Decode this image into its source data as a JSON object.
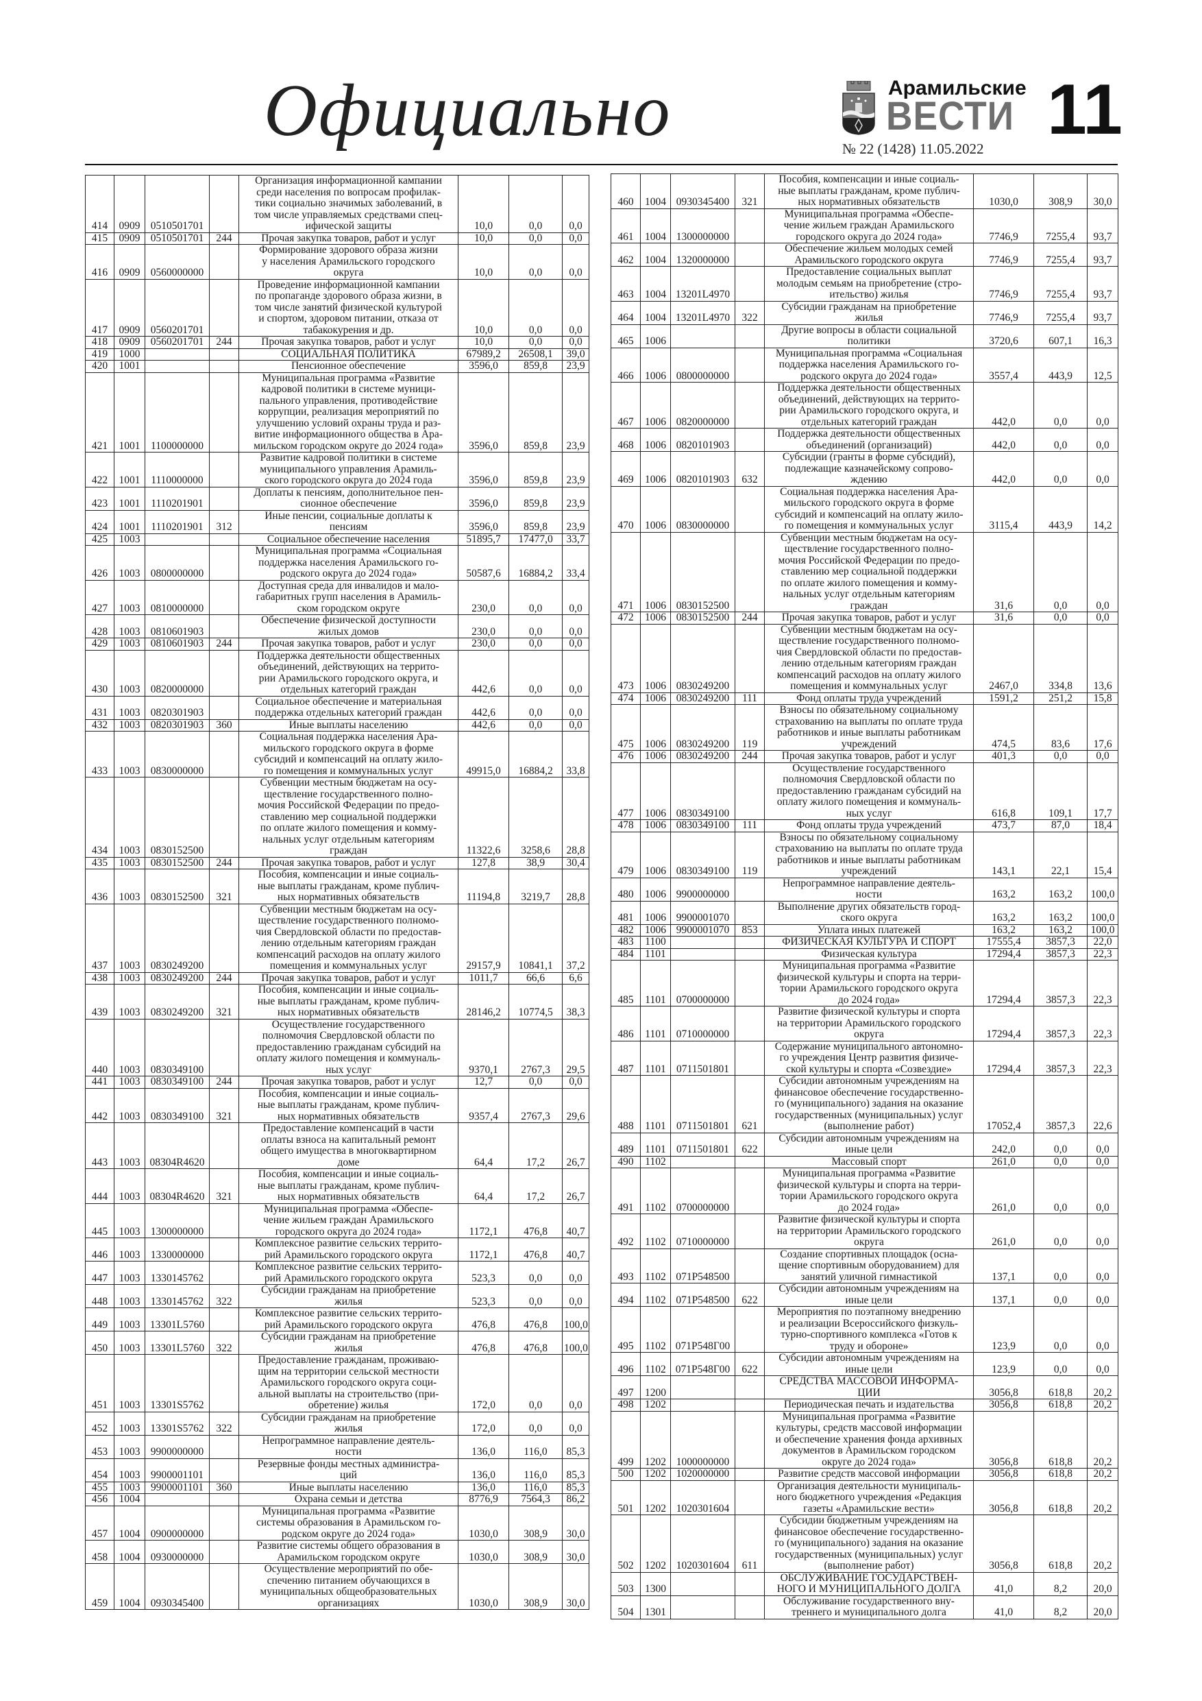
{
  "header": {
    "section_title": "Официально",
    "brand_top": "Арамильские",
    "brand_main": "ВЕСТИ",
    "issue": "№ 22 (1428) 11.05.2022",
    "page_number": "11",
    "logo_icon": "coat-of-arms-icon"
  },
  "left_table": [
    [
      "414",
      "0909",
      "0510501701",
      "",
      "Организация информационной кампании\nсреди населения по вопросам профилак-\nтики социально значимых заболеваний, в\nтом числе управляемых средствами спец-\nифической защиты",
      "10,0",
      "0,0",
      "0,0"
    ],
    [
      "415",
      "0909",
      "0510501701",
      "244",
      "Прочая закупка товаров, работ и услуг",
      "10,0",
      "0,0",
      "0,0"
    ],
    [
      "416",
      "0909",
      "0560000000",
      "",
      "Формирование здорового образа жизни\nу населения Арамильского городского\nокруга",
      "10,0",
      "0,0",
      "0,0"
    ],
    [
      "417",
      "0909",
      "0560201701",
      "",
      "Проведение информационной кампании\nпо пропаганде здорового образа жизни, в\nтом числе занятий физической культурой\nи спортом, здоровом питании, отказа от\nтабакокурения и др.",
      "10,0",
      "0,0",
      "0,0"
    ],
    [
      "418",
      "0909",
      "0560201701",
      "244",
      "Прочая закупка товаров, работ и услуг",
      "10,0",
      "0,0",
      "0,0"
    ],
    [
      "419",
      "1000",
      "",
      "",
      "СОЦИАЛЬНАЯ ПОЛИТИКА",
      "67989,2",
      "26508,1",
      "39,0"
    ],
    [
      "420",
      "1001",
      "",
      "",
      "Пенсионное обеспечение",
      "3596,0",
      "859,8",
      "23,9"
    ],
    [
      "421",
      "1001",
      "1100000000",
      "",
      "Муниципальная программа «Развитие\nкадровой политики в системе муници-\nпального управления, противодействие\nкоррупции, реализация мероприятий по\nулучшению условий охраны труда и раз-\nвитие информационного общества в Ара-\nмильском городском округе до 2024 года»",
      "3596,0",
      "859,8",
      "23,9"
    ],
    [
      "422",
      "1001",
      "1110000000",
      "",
      "Развитие кадровой политики в системе\nмуниципального управления Арамиль-\nского городского округа до 2024 года",
      "3596,0",
      "859,8",
      "23,9"
    ],
    [
      "423",
      "1001",
      "1110201901",
      "",
      "Доплаты к пенсиям, дополнительное пен-\nсионное обеспечение",
      "3596,0",
      "859,8",
      "23,9"
    ],
    [
      "424",
      "1001",
      "1110201901",
      "312",
      "Иные пенсии, социальные доплаты к\nпенсиям",
      "3596,0",
      "859,8",
      "23,9"
    ],
    [
      "425",
      "1003",
      "",
      "",
      "Социальное обеспечение населения",
      "51895,7",
      "17477,0",
      "33,7"
    ],
    [
      "426",
      "1003",
      "0800000000",
      "",
      "Муниципальная программа «Социальная\nподдержка населения Арамильского го-\nродского округа до 2024 года»",
      "50587,6",
      "16884,2",
      "33,4"
    ],
    [
      "427",
      "1003",
      "0810000000",
      "",
      "Доступная среда для инвалидов и мало-\nгабаритных групп населения в Арамиль-\nском городском округе",
      "230,0",
      "0,0",
      "0,0"
    ],
    [
      "428",
      "1003",
      "0810601903",
      "",
      "Обеспечение физической доступности\nжилых домов",
      "230,0",
      "0,0",
      "0,0"
    ],
    [
      "429",
      "1003",
      "0810601903",
      "244",
      "Прочая закупка товаров, работ и услуг",
      "230,0",
      "0,0",
      "0,0"
    ],
    [
      "430",
      "1003",
      "0820000000",
      "",
      "Поддержка деятельности общественных\nобъединений, действующих на террито-\nрии Арамильского городского округа, и\nотдельных категорий граждан",
      "442,6",
      "0,0",
      "0,0"
    ],
    [
      "431",
      "1003",
      "0820301903",
      "",
      "Социальное обеспечение и материальная\nподдержка отдельных категорий граждан",
      "442,6",
      "0,0",
      "0,0"
    ],
    [
      "432",
      "1003",
      "0820301903",
      "360",
      "Иные выплаты населению",
      "442,6",
      "0,0",
      "0,0"
    ],
    [
      "433",
      "1003",
      "0830000000",
      "",
      "Социальная поддержка населения Ара-\nмильского городского округа в форме\nсубсидий и компенсаций на оплату жило-\nго помещения и коммунальных услуг",
      "49915,0",
      "16884,2",
      "33,8"
    ],
    [
      "434",
      "1003",
      "0830152500",
      "",
      "Субвенции местным бюджетам на осу-\nществление государственного полно-\nмочия Российской Федерации по предо-\nставлению мер социальной поддержки\nпо оплате жилого помещения и комму-\nнальных услуг отдельным категориям\nграждан",
      "11322,6",
      "3258,6",
      "28,8"
    ],
    [
      "435",
      "1003",
      "0830152500",
      "244",
      "Прочая закупка товаров, работ и услуг",
      "127,8",
      "38,9",
      "30,4"
    ],
    [
      "436",
      "1003",
      "0830152500",
      "321",
      "Пособия, компенсации и иные социаль-\nные выплаты гражданам, кроме публич-\nных нормативных обязательств",
      "11194,8",
      "3219,7",
      "28,8"
    ],
    [
      "437",
      "1003",
      "0830249200",
      "",
      "Субвенции местным бюджетам на осу-\nществление государственного полномо-\nчия Свердловской области по предостав-\nлению отдельным категориям граждан\nкомпенсаций расходов на оплату жилого\nпомещения и коммунальных услуг",
      "29157,9",
      "10841,1",
      "37,2"
    ],
    [
      "438",
      "1003",
      "0830249200",
      "244",
      "Прочая закупка товаров, работ и услуг",
      "1011,7",
      "66,6",
      "6,6"
    ],
    [
      "439",
      "1003",
      "0830249200",
      "321",
      "Пособия, компенсации и иные социаль-\nные выплаты гражданам, кроме публич-\nных нормативных обязательств",
      "28146,2",
      "10774,5",
      "38,3"
    ],
    [
      "440",
      "1003",
      "0830349100",
      "",
      "Осуществление государственного\nполномочия Свердловской области по\nпредоставлению гражданам субсидий на\nоплату жилого помещения и коммуналь-\nных услуг",
      "9370,1",
      "2767,3",
      "29,5"
    ],
    [
      "441",
      "1003",
      "0830349100",
      "244",
      "Прочая закупка товаров, работ и услуг",
      "12,7",
      "0,0",
      "0,0"
    ],
    [
      "442",
      "1003",
      "0830349100",
      "321",
      "Пособия, компенсации и иные социаль-\nные выплаты гражданам, кроме публич-\nных нормативных обязательств",
      "9357,4",
      "2767,3",
      "29,6"
    ],
    [
      "443",
      "1003",
      "08304R4620",
      "",
      "Предоставление компенсаций в части\nоплаты взноса на капитальный ремонт\nобщего имущества в многоквартирном\nдоме",
      "64,4",
      "17,2",
      "26,7"
    ],
    [
      "444",
      "1003",
      "08304R4620",
      "321",
      "Пособия, компенсации и иные социаль-\nные выплаты гражданам, кроме публич-\nных нормативных обязательств",
      "64,4",
      "17,2",
      "26,7"
    ],
    [
      "445",
      "1003",
      "1300000000",
      "",
      "Муниципальная программа «Обеспе-\nчение жильем граждан Арамильского\nгородского округа до 2024 года»",
      "1172,1",
      "476,8",
      "40,7"
    ],
    [
      "446",
      "1003",
      "1330000000",
      "",
      "Комплексное развитие сельских террито-\nрий Арамильского городского округа",
      "1172,1",
      "476,8",
      "40,7"
    ],
    [
      "447",
      "1003",
      "1330145762",
      "",
      "Комплексное развитие сельских террито-\nрий Арамильского городского округа",
      "523,3",
      "0,0",
      "0,0"
    ],
    [
      "448",
      "1003",
      "1330145762",
      "322",
      "Субсидии гражданам на приобретение\nжилья",
      "523,3",
      "0,0",
      "0,0"
    ],
    [
      "449",
      "1003",
      "13301L5760",
      "",
      "Комплексное развитие сельских террито-\nрий Арамильского городского округа",
      "476,8",
      "476,8",
      "100,0"
    ],
    [
      "450",
      "1003",
      "13301L5760",
      "322",
      "Субсидии гражданам на приобретение\nжилья",
      "476,8",
      "476,8",
      "100,0"
    ],
    [
      "451",
      "1003",
      "13301S5762",
      "",
      "Предоставление гражданам, проживаю-\nщим на территории сельской местности\nАрамильского городского округа соци-\nальной выплаты на строительство (при-\nобретение) жилья",
      "172,0",
      "0,0",
      "0,0"
    ],
    [
      "452",
      "1003",
      "13301S5762",
      "322",
      "Субсидии гражданам на приобретение\nжилья",
      "172,0",
      "0,0",
      "0,0"
    ],
    [
      "453",
      "1003",
      "9900000000",
      "",
      "Непрограммное направление деятель-\nности",
      "136,0",
      "116,0",
      "85,3"
    ],
    [
      "454",
      "1003",
      "9900001101",
      "",
      "Резервные фонды местных администра-\nций",
      "136,0",
      "116,0",
      "85,3"
    ],
    [
      "455",
      "1003",
      "9900001101",
      "360",
      "Иные выплаты населению",
      "136,0",
      "116,0",
      "85,3"
    ],
    [
      "456",
      "1004",
      "",
      "",
      "Охрана семьи и детства",
      "8776,9",
      "7564,3",
      "86,2"
    ],
    [
      "457",
      "1004",
      "0900000000",
      "",
      "Муниципальная программа «Развитие\nсистемы образования в Арамильском го-\nродском округе до 2024 года»",
      "1030,0",
      "308,9",
      "30,0"
    ],
    [
      "458",
      "1004",
      "0930000000",
      "",
      "Развитие системы общего образования в\nАрамильском городском округе",
      "1030,0",
      "308,9",
      "30,0"
    ],
    [
      "459",
      "1004",
      "0930345400",
      "",
      "Осуществление мероприятий по обе-\nспечению питанием обучающихся в\nмуниципальных общеобразовательных\nорганизациях",
      "1030,0",
      "308,9",
      "30,0"
    ]
  ],
  "right_table": [
    [
      "460",
      "1004",
      "0930345400",
      "321",
      "Пособия, компенсации и иные социаль-\nные выплаты гражданам, кроме публич-\nных нормативных обязательств",
      "1030,0",
      "308,9",
      "30,0"
    ],
    [
      "461",
      "1004",
      "1300000000",
      "",
      "Муниципальная программа «Обеспе-\nчение жильем граждан Арамильского\nгородского округа до 2024 года»",
      "7746,9",
      "7255,4",
      "93,7"
    ],
    [
      "462",
      "1004",
      "1320000000",
      "",
      "Обеспечение жильем молодых семей\nАрамильского городского округа",
      "7746,9",
      "7255,4",
      "93,7"
    ],
    [
      "463",
      "1004",
      "13201L4970",
      "",
      "Предоставление социальных выплат\nмолодым семьям на приобретение (стро-\nительство) жилья",
      "7746,9",
      "7255,4",
      "93,7"
    ],
    [
      "464",
      "1004",
      "13201L4970",
      "322",
      "Субсидии гражданам на приобретение\nжилья",
      "7746,9",
      "7255,4",
      "93,7"
    ],
    [
      "465",
      "1006",
      "",
      "",
      "Другие вопросы в области социальной\nполитики",
      "3720,6",
      "607,1",
      "16,3"
    ],
    [
      "466",
      "1006",
      "0800000000",
      "",
      "Муниципальная программа «Социальная\nподдержка населения Арамильского го-\nродского округа до 2024 года»",
      "3557,4",
      "443,9",
      "12,5"
    ],
    [
      "467",
      "1006",
      "0820000000",
      "",
      "Поддержка деятельности общественных\nобъединений, действующих на террито-\nрии Арамильского городского округа, и\nотдельных категорий граждан",
      "442,0",
      "0,0",
      "0,0"
    ],
    [
      "468",
      "1006",
      "0820101903",
      "",
      "Поддержка деятельности общественных\nобъединений (организаций)",
      "442,0",
      "0,0",
      "0,0"
    ],
    [
      "469",
      "1006",
      "0820101903",
      "632",
      "Субсидии (гранты в форме субсидий),\nподлежащие казначейскому сопрово-\nждению",
      "442,0",
      "0,0",
      "0,0"
    ],
    [
      "470",
      "1006",
      "0830000000",
      "",
      "Социальная поддержка населения Ара-\nмильского городского округа в форме\nсубсидий и компенсаций на оплату жило-\nго помещения и коммунальных услуг",
      "3115,4",
      "443,9",
      "14,2"
    ],
    [
      "471",
      "1006",
      "0830152500",
      "",
      "Субвенции местным бюджетам на осу-\nществление государственного полно-\nмочия Российской Федерации по предо-\nставлению мер социальной поддержки\nпо оплате жилого помещения и комму-\nнальных услуг отдельным категориям\nграждан",
      "31,6",
      "0,0",
      "0,0"
    ],
    [
      "472",
      "1006",
      "0830152500",
      "244",
      "Прочая закупка товаров, работ и услуг",
      "31,6",
      "0,0",
      "0,0"
    ],
    [
      "473",
      "1006",
      "0830249200",
      "",
      "Субвенции местным бюджетам на осу-\nществление государственного полномо-\nчия Свердловской области по предостав-\nлению отдельным категориям граждан\nкомпенсаций расходов на оплату жилого\nпомещения и коммунальных услуг",
      "2467,0",
      "334,8",
      "13,6"
    ],
    [
      "474",
      "1006",
      "0830249200",
      "111",
      "Фонд оплаты труда учреждений",
      "1591,2",
      "251,2",
      "15,8"
    ],
    [
      "475",
      "1006",
      "0830249200",
      "119",
      "Взносы по обязательному социальному\nстрахованию на выплаты по оплате труда\nработников и иные выплаты работникам\nучреждений",
      "474,5",
      "83,6",
      "17,6"
    ],
    [
      "476",
      "1006",
      "0830249200",
      "244",
      "Прочая закупка товаров, работ и услуг",
      "401,3",
      "0,0",
      "0,0"
    ],
    [
      "477",
      "1006",
      "0830349100",
      "",
      "Осуществление государственного\nполномочия Свердловской области по\nпредоставлению гражданам субсидий на\nоплату жилого помещения и коммуналь-\nных услуг",
      "616,8",
      "109,1",
      "17,7"
    ],
    [
      "478",
      "1006",
      "0830349100",
      "111",
      "Фонд оплаты труда учреждений",
      "473,7",
      "87,0",
      "18,4"
    ],
    [
      "479",
      "1006",
      "0830349100",
      "119",
      "Взносы по обязательному социальному\nстрахованию на выплаты по оплате труда\nработников и иные выплаты работникам\nучреждений",
      "143,1",
      "22,1",
      "15,4"
    ],
    [
      "480",
      "1006",
      "9900000000",
      "",
      "Непрограммное направление деятель-\nности",
      "163,2",
      "163,2",
      "100,0"
    ],
    [
      "481",
      "1006",
      "9900001070",
      "",
      "Выполнение других обязательств город-\nского округа",
      "163,2",
      "163,2",
      "100,0"
    ],
    [
      "482",
      "1006",
      "9900001070",
      "853",
      "Уплата иных платежей",
      "163,2",
      "163,2",
      "100,0"
    ],
    [
      "483",
      "1100",
      "",
      "",
      "ФИЗИЧЕСКАЯ КУЛЬТУРА И СПОРТ",
      "17555,4",
      "3857,3",
      "22,0"
    ],
    [
      "484",
      "1101",
      "",
      "",
      "Физическая культура",
      "17294,4",
      "3857,3",
      "22,3"
    ],
    [
      "485",
      "1101",
      "0700000000",
      "",
      "Муниципальная программа «Развитие\nфизической культуры и спорта на терри-\nтории Арамильского городского округа\nдо 2024 года»",
      "17294,4",
      "3857,3",
      "22,3"
    ],
    [
      "486",
      "1101",
      "0710000000",
      "",
      "Развитие физической культуры и спорта\nна территории Арамильского городского\nокруга",
      "17294,4",
      "3857,3",
      "22,3"
    ],
    [
      "487",
      "1101",
      "0711501801",
      "",
      "Содержание муниципального автономно-\nго учреждения Центр развития физиче-\nской культуры и спорта «Созвездие»",
      "17294,4",
      "3857,3",
      "22,3"
    ],
    [
      "488",
      "1101",
      "0711501801",
      "621",
      "Субсидии автономным учреждениям на\nфинансовое обеспечение государственно-\nго (муниципального) задания на оказание\nгосударственных (муниципальных) услуг\n(выполнение работ)",
      "17052,4",
      "3857,3",
      "22,6"
    ],
    [
      "489",
      "1101",
      "0711501801",
      "622",
      "Субсидии автономным учреждениям на\nиные цели",
      "242,0",
      "0,0",
      "0,0"
    ],
    [
      "490",
      "1102",
      "",
      "",
      "Массовый спорт",
      "261,0",
      "0,0",
      "0,0"
    ],
    [
      "491",
      "1102",
      "0700000000",
      "",
      "Муниципальная программа «Развитие\nфизической культуры и спорта на терри-\nтории Арамильского городского округа\nдо 2024 года»",
      "261,0",
      "0,0",
      "0,0"
    ],
    [
      "492",
      "1102",
      "0710000000",
      "",
      "Развитие физической культуры и спорта\nна территории Арамильского городского\nокруга",
      "261,0",
      "0,0",
      "0,0"
    ],
    [
      "493",
      "1102",
      "071P548500",
      "",
      "Создание спортивных площадок (осна-\nщение спортивным оборудованием) для\nзанятий уличной гимнастикой",
      "137,1",
      "0,0",
      "0,0"
    ],
    [
      "494",
      "1102",
      "071P548500",
      "622",
      "Субсидии автономным учреждениям на\nиные цели",
      "137,1",
      "0,0",
      "0,0"
    ],
    [
      "495",
      "1102",
      "071P548Г00",
      "",
      "Мероприятия по поэтапному внедрению\nи реализации Всероссийского физкуль-\nтурно-спортивного комплекса «Готов к\nтруду и обороне»",
      "123,9",
      "0,0",
      "0,0"
    ],
    [
      "496",
      "1102",
      "071P548Г00",
      "622",
      "Субсидии автономным учреждениям на\nиные цели",
      "123,9",
      "0,0",
      "0,0"
    ],
    [
      "497",
      "1200",
      "",
      "",
      "СРЕДСТВА МАССОВОЙ ИНФОРМА-\nЦИИ",
      "3056,8",
      "618,8",
      "20,2"
    ],
    [
      "498",
      "1202",
      "",
      "",
      "Периодическая печать и издательства",
      "3056,8",
      "618,8",
      "20,2"
    ],
    [
      "499",
      "1202",
      "1000000000",
      "",
      "Муниципальная программа «Развитие\nкультуры, средств массовой информации\nи обеспечение хранения фонда архивных\nдокументов в Арамильском городском\nокруге до 2024 года»",
      "3056,8",
      "618,8",
      "20,2"
    ],
    [
      "500",
      "1202",
      "1020000000",
      "",
      "Развитие средств массовой информации",
      "3056,8",
      "618,8",
      "20,2"
    ],
    [
      "501",
      "1202",
      "1020301604",
      "",
      "Организация деятельности муниципаль-\nного бюджетного учреждения «Редакция\nгазеты «Арамильские вести»",
      "3056,8",
      "618,8",
      "20,2"
    ],
    [
      "502",
      "1202",
      "1020301604",
      "611",
      "Субсидии бюджетным учреждениям на\nфинансовое обеспечение государственно-\nго (муниципального) задания на оказание\nгосударственных (муниципальных) услуг\n(выполнение работ)",
      "3056,8",
      "618,8",
      "20,2"
    ],
    [
      "503",
      "1300",
      "",
      "",
      "ОБСЛУЖИВАНИЕ ГОСУДАРСТВЕН-\nНОГО И МУНИЦИПАЛЬНОГО ДОЛГА",
      "41,0",
      "8,2",
      "20,0"
    ],
    [
      "504",
      "1301",
      "",
      "",
      "Обслуживание государственного вну-\nтреннего и муниципального долга",
      "41,0",
      "8,2",
      "20,0"
    ]
  ]
}
